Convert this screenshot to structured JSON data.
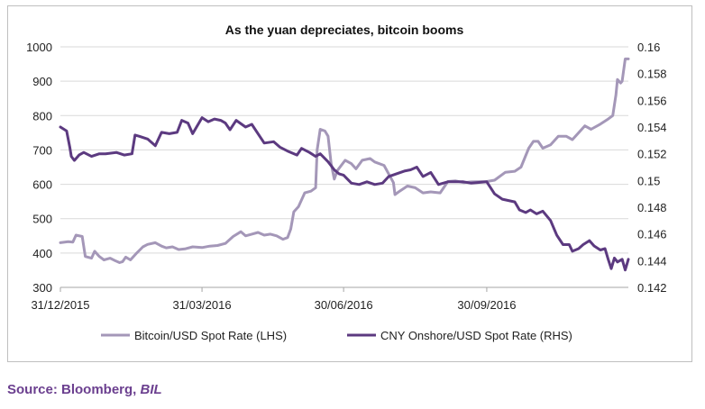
{
  "source": {
    "prefix": "Source: Bloomberg, ",
    "suffix": "BIL"
  },
  "chart_data": {
    "type": "line",
    "title": "As the yuan depreciates, bitcoin booms",
    "x_range": [
      "2015-12-31",
      "2016-12-30"
    ],
    "x_ticks": [
      "31/12/2015",
      "31/03/2016",
      "30/06/2016",
      "30/09/2016"
    ],
    "x_tick_dates": [
      "2015-12-31",
      "2016-03-31",
      "2016-06-30",
      "2016-09-30"
    ],
    "y_left": {
      "range": [
        300,
        1000
      ],
      "ticks": [
        "300",
        "400",
        "500",
        "600",
        "700",
        "800",
        "900",
        "1000"
      ]
    },
    "y_right": {
      "range": [
        0.142,
        0.16
      ],
      "ticks": [
        "0.142",
        "0.144",
        "0.146",
        "0.148",
        "0.15",
        "0.152",
        "0.154",
        "0.156",
        "0.158",
        "0.16"
      ]
    },
    "grid": "horizontal",
    "legend_position": "bottom",
    "series": [
      {
        "name": "Bitcoin/USD Spot Rate (LHS)",
        "axis": "left",
        "color": "#a497b8",
        "points": [
          [
            "2015-12-31",
            430
          ],
          [
            "2016-01-05",
            433
          ],
          [
            "2016-01-08",
            432
          ],
          [
            "2016-01-10",
            452
          ],
          [
            "2016-01-14",
            448
          ],
          [
            "2016-01-16",
            390
          ],
          [
            "2016-01-20",
            385
          ],
          [
            "2016-01-22",
            405
          ],
          [
            "2016-01-25",
            390
          ],
          [
            "2016-01-28",
            380
          ],
          [
            "2016-02-01",
            385
          ],
          [
            "2016-02-04",
            378
          ],
          [
            "2016-02-07",
            372
          ],
          [
            "2016-02-09",
            375
          ],
          [
            "2016-02-11",
            388
          ],
          [
            "2016-02-14",
            380
          ],
          [
            "2016-02-18",
            400
          ],
          [
            "2016-02-22",
            418
          ],
          [
            "2016-02-25",
            425
          ],
          [
            "2016-03-01",
            430
          ],
          [
            "2016-03-05",
            420
          ],
          [
            "2016-03-08",
            415
          ],
          [
            "2016-03-12",
            418
          ],
          [
            "2016-03-16",
            410
          ],
          [
            "2016-03-20",
            412
          ],
          [
            "2016-03-25",
            418
          ],
          [
            "2016-03-31",
            416
          ],
          [
            "2016-04-05",
            420
          ],
          [
            "2016-04-10",
            422
          ],
          [
            "2016-04-15",
            428
          ],
          [
            "2016-04-20",
            448
          ],
          [
            "2016-04-25",
            462
          ],
          [
            "2016-04-28",
            450
          ],
          [
            "2016-05-02",
            455
          ],
          [
            "2016-05-06",
            460
          ],
          [
            "2016-05-10",
            452
          ],
          [
            "2016-05-14",
            455
          ],
          [
            "2016-05-18",
            450
          ],
          [
            "2016-05-22",
            440
          ],
          [
            "2016-05-25",
            445
          ],
          [
            "2016-05-27",
            470
          ],
          [
            "2016-05-29",
            520
          ],
          [
            "2016-06-01",
            535
          ],
          [
            "2016-06-05",
            575
          ],
          [
            "2016-06-09",
            580
          ],
          [
            "2016-06-12",
            590
          ],
          [
            "2016-06-13",
            700
          ],
          [
            "2016-06-15",
            760
          ],
          [
            "2016-06-18",
            755
          ],
          [
            "2016-06-20",
            740
          ],
          [
            "2016-06-22",
            660
          ],
          [
            "2016-06-24",
            615
          ],
          [
            "2016-06-26",
            640
          ],
          [
            "2016-07-01",
            670
          ],
          [
            "2016-07-05",
            660
          ],
          [
            "2016-07-08",
            645
          ],
          [
            "2016-07-12",
            670
          ],
          [
            "2016-07-17",
            675
          ],
          [
            "2016-07-20",
            665
          ],
          [
            "2016-07-26",
            655
          ],
          [
            "2016-08-01",
            605
          ],
          [
            "2016-08-02",
            570
          ],
          [
            "2016-08-05",
            580
          ],
          [
            "2016-08-10",
            595
          ],
          [
            "2016-08-15",
            590
          ],
          [
            "2016-08-20",
            575
          ],
          [
            "2016-08-25",
            578
          ],
          [
            "2016-08-31",
            575
          ],
          [
            "2016-09-05",
            608
          ],
          [
            "2016-09-10",
            610
          ],
          [
            "2016-09-15",
            605
          ],
          [
            "2016-09-20",
            607
          ],
          [
            "2016-09-30",
            608
          ],
          [
            "2016-10-05",
            612
          ],
          [
            "2016-10-12",
            635
          ],
          [
            "2016-10-18",
            638
          ],
          [
            "2016-10-22",
            650
          ],
          [
            "2016-10-27",
            705
          ],
          [
            "2016-10-30",
            725
          ],
          [
            "2016-11-02",
            725
          ],
          [
            "2016-11-05",
            705
          ],
          [
            "2016-11-10",
            715
          ],
          [
            "2016-11-15",
            740
          ],
          [
            "2016-11-20",
            740
          ],
          [
            "2016-11-24",
            730
          ],
          [
            "2016-11-28",
            750
          ],
          [
            "2016-12-02",
            770
          ],
          [
            "2016-12-06",
            760
          ],
          [
            "2016-12-12",
            775
          ],
          [
            "2016-12-17",
            790
          ],
          [
            "2016-12-20",
            800
          ],
          [
            "2016-12-22",
            860
          ],
          [
            "2016-12-23",
            905
          ],
          [
            "2016-12-25",
            895
          ],
          [
            "2016-12-26",
            900
          ],
          [
            "2016-12-28",
            965
          ],
          [
            "2016-12-30",
            965
          ]
        ]
      },
      {
        "name": "CNY Onshore/USD Spot Rate (RHS)",
        "axis": "right",
        "color": "#5c3a80",
        "points": [
          [
            "2015-12-31",
            0.154
          ],
          [
            "2016-01-04",
            0.1537
          ],
          [
            "2016-01-06",
            0.1525
          ],
          [
            "2016-01-07",
            0.1518
          ],
          [
            "2016-01-09",
            0.1515
          ],
          [
            "2016-01-12",
            0.1519
          ],
          [
            "2016-01-15",
            0.1521
          ],
          [
            "2016-01-20",
            0.1518
          ],
          [
            "2016-01-25",
            0.152
          ],
          [
            "2016-01-29",
            0.152
          ],
          [
            "2016-02-05",
            0.1521
          ],
          [
            "2016-02-10",
            0.1519
          ],
          [
            "2016-02-15",
            0.152
          ],
          [
            "2016-02-17",
            0.1534
          ],
          [
            "2016-02-20",
            0.1533
          ],
          [
            "2016-02-25",
            0.1531
          ],
          [
            "2016-03-01",
            0.1526
          ],
          [
            "2016-03-05",
            0.1536
          ],
          [
            "2016-03-10",
            0.1535
          ],
          [
            "2016-03-15",
            0.1536
          ],
          [
            "2016-03-18",
            0.1545
          ],
          [
            "2016-03-22",
            0.1543
          ],
          [
            "2016-03-25",
            0.1535
          ],
          [
            "2016-03-31",
            0.1547
          ],
          [
            "2016-04-04",
            0.1544
          ],
          [
            "2016-04-08",
            0.1546
          ],
          [
            "2016-04-12",
            0.1545
          ],
          [
            "2016-04-15",
            0.1543
          ],
          [
            "2016-04-18",
            0.1538
          ],
          [
            "2016-04-22",
            0.1545
          ],
          [
            "2016-04-28",
            0.154
          ],
          [
            "2016-05-02",
            0.1542
          ],
          [
            "2016-05-06",
            0.1535
          ],
          [
            "2016-05-10",
            0.1528
          ],
          [
            "2016-05-16",
            0.1529
          ],
          [
            "2016-05-20",
            0.1525
          ],
          [
            "2016-05-25",
            0.1522
          ],
          [
            "2016-05-31",
            0.1519
          ],
          [
            "2016-06-03",
            0.1524
          ],
          [
            "2016-06-08",
            0.1521
          ],
          [
            "2016-06-12",
            0.1518
          ],
          [
            "2016-06-15",
            0.152
          ],
          [
            "2016-06-20",
            0.1514
          ],
          [
            "2016-06-24",
            0.1508
          ],
          [
            "2016-06-27",
            0.1505
          ],
          [
            "2016-06-30",
            0.1504
          ],
          [
            "2016-07-05",
            0.1498
          ],
          [
            "2016-07-10",
            0.1497
          ],
          [
            "2016-07-15",
            0.1499
          ],
          [
            "2016-07-20",
            0.1497
          ],
          [
            "2016-07-25",
            0.1498
          ],
          [
            "2016-07-29",
            0.1503
          ],
          [
            "2016-08-03",
            0.1505
          ],
          [
            "2016-08-08",
            0.1507
          ],
          [
            "2016-08-12",
            0.1508
          ],
          [
            "2016-08-16",
            0.151
          ],
          [
            "2016-08-20",
            0.1503
          ],
          [
            "2016-08-25",
            0.1506
          ],
          [
            "2016-08-30",
            0.1497
          ],
          [
            "2016-09-05",
            0.1499
          ],
          [
            "2016-09-10",
            0.1499
          ],
          [
            "2016-09-15",
            0.1499
          ],
          [
            "2016-09-20",
            0.1498
          ],
          [
            "2016-09-30",
            0.1499
          ],
          [
            "2016-10-05",
            0.149
          ],
          [
            "2016-10-10",
            0.1486
          ],
          [
            "2016-10-14",
            0.1485
          ],
          [
            "2016-10-18",
            0.1484
          ],
          [
            "2016-10-21",
            0.1478
          ],
          [
            "2016-10-25",
            0.1476
          ],
          [
            "2016-10-28",
            0.1478
          ],
          [
            "2016-11-01",
            0.1475
          ],
          [
            "2016-11-05",
            0.1477
          ],
          [
            "2016-11-10",
            0.147
          ],
          [
            "2016-11-14",
            0.1459
          ],
          [
            "2016-11-18",
            0.1452
          ],
          [
            "2016-11-22",
            0.1452
          ],
          [
            "2016-11-24",
            0.1447
          ],
          [
            "2016-11-28",
            0.1449
          ],
          [
            "2016-12-01",
            0.1452
          ],
          [
            "2016-12-05",
            0.1455
          ],
          [
            "2016-12-08",
            0.1451
          ],
          [
            "2016-12-12",
            0.1448
          ],
          [
            "2016-12-15",
            0.1449
          ],
          [
            "2016-12-17",
            0.1441
          ],
          [
            "2016-12-19",
            0.1434
          ],
          [
            "2016-12-21",
            0.1442
          ],
          [
            "2016-12-23",
            0.1439
          ],
          [
            "2016-12-26",
            0.1441
          ],
          [
            "2016-12-28",
            0.1433
          ],
          [
            "2016-12-30",
            0.1441
          ]
        ]
      }
    ]
  }
}
